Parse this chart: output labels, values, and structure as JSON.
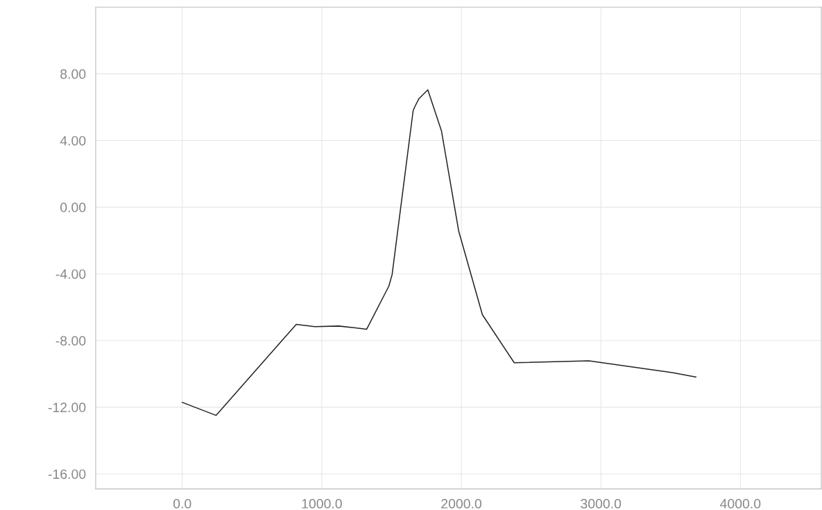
{
  "chart_data": {
    "type": "line",
    "x": [
      0,
      242,
      817,
      950,
      1122,
      1322,
      1481,
      1504,
      1655,
      1667,
      1697,
      1760,
      1858,
      1981,
      2151,
      2379,
      2914,
      3512,
      3681
    ],
    "series": [
      {
        "color": "#222222",
        "values": [
          -11.71,
          -12.49,
          -7.03,
          -7.17,
          -7.13,
          -7.32,
          -4.73,
          -4.05,
          5.8,
          6.03,
          6.52,
          7.04,
          4.57,
          -1.42,
          -6.45,
          -9.33,
          -9.22,
          -9.92,
          -10.19
        ]
      }
    ],
    "xlim": [
      -620,
      4580
    ],
    "ylim": [
      -16.9,
      12.0
    ],
    "xticks": [
      {
        "value": 0,
        "label": "0.0"
      },
      {
        "value": 1000,
        "label": "1000.0"
      },
      {
        "value": 2000,
        "label": "2000.0"
      },
      {
        "value": 3000,
        "label": "3000.0"
      },
      {
        "value": 4000,
        "label": "4000.0"
      }
    ],
    "yticks": [
      {
        "value": -16,
        "label": "-16.00"
      },
      {
        "value": -12,
        "label": "-12.00"
      },
      {
        "value": -8,
        "label": "-8.00"
      },
      {
        "value": -4,
        "label": "-4.00"
      },
      {
        "value": 0,
        "label": "0.00"
      },
      {
        "value": 4,
        "label": "4.00"
      },
      {
        "value": 8,
        "label": "8.00"
      }
    ],
    "grid": true
  }
}
